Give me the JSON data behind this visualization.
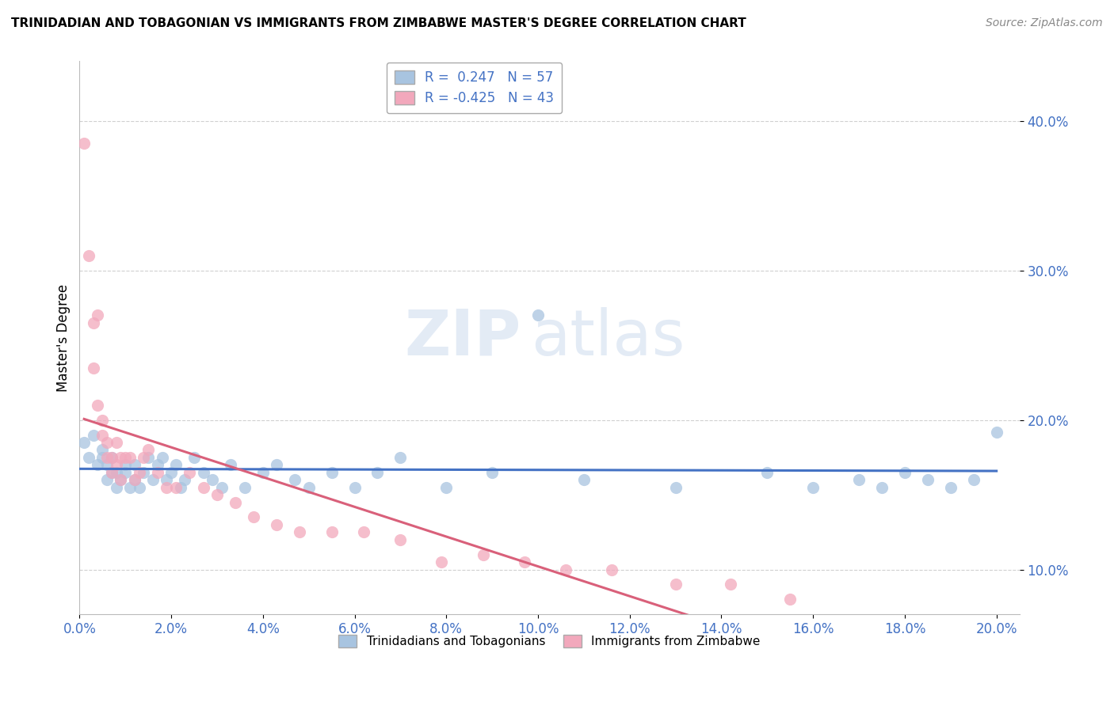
{
  "title": "TRINIDADIAN AND TOBAGONIAN VS IMMIGRANTS FROM ZIMBABWE MASTER'S DEGREE CORRELATION CHART",
  "source": "Source: ZipAtlas.com",
  "ylabel": "Master's Degree",
  "xlim": [
    0.0,
    0.205
  ],
  "ylim": [
    0.07,
    0.44
  ],
  "yticks": [
    0.1,
    0.2,
    0.3,
    0.4
  ],
  "ytick_labels": [
    "10.0%",
    "20.0%",
    "30.0%",
    "40.0%"
  ],
  "xticks": [
    0.0,
    0.02,
    0.04,
    0.06,
    0.08,
    0.1,
    0.12,
    0.14,
    0.16,
    0.18,
    0.2
  ],
  "xtick_labels": [
    "0.0%",
    "2.0%",
    "4.0%",
    "6.0%",
    "8.0%",
    "10.0%",
    "12.0%",
    "14.0%",
    "16.0%",
    "18.0%",
    "20.0%"
  ],
  "blue_R": 0.247,
  "blue_N": 57,
  "pink_R": -0.425,
  "pink_N": 43,
  "blue_color": "#a8c4e0",
  "pink_color": "#f2a8bc",
  "blue_line_color": "#4472c4",
  "pink_line_color": "#d9607a",
  "legend_label_blue": "R =  0.247   N = 57",
  "legend_label_pink": "R = -0.425   N = 43",
  "bottom_legend_blue": "Trinidadians and Tobagonians",
  "bottom_legend_pink": "Immigrants from Zimbabwe",
  "blue_scatter_x": [
    0.001,
    0.002,
    0.003,
    0.004,
    0.005,
    0.005,
    0.006,
    0.006,
    0.007,
    0.007,
    0.008,
    0.008,
    0.009,
    0.01,
    0.01,
    0.011,
    0.012,
    0.012,
    0.013,
    0.014,
    0.015,
    0.016,
    0.017,
    0.018,
    0.019,
    0.02,
    0.021,
    0.022,
    0.023,
    0.025,
    0.027,
    0.029,
    0.031,
    0.033,
    0.036,
    0.04,
    0.043,
    0.047,
    0.05,
    0.055,
    0.06,
    0.065,
    0.07,
    0.08,
    0.09,
    0.1,
    0.11,
    0.13,
    0.15,
    0.16,
    0.17,
    0.175,
    0.18,
    0.185,
    0.19,
    0.195,
    0.2
  ],
  "blue_scatter_y": [
    0.185,
    0.175,
    0.19,
    0.17,
    0.175,
    0.18,
    0.16,
    0.17,
    0.165,
    0.175,
    0.155,
    0.165,
    0.16,
    0.17,
    0.165,
    0.155,
    0.16,
    0.17,
    0.155,
    0.165,
    0.175,
    0.16,
    0.17,
    0.175,
    0.16,
    0.165,
    0.17,
    0.155,
    0.16,
    0.175,
    0.165,
    0.16,
    0.155,
    0.17,
    0.155,
    0.165,
    0.17,
    0.16,
    0.155,
    0.165,
    0.155,
    0.165,
    0.175,
    0.155,
    0.165,
    0.27,
    0.16,
    0.155,
    0.165,
    0.155,
    0.16,
    0.155,
    0.165,
    0.16,
    0.155,
    0.16,
    0.192
  ],
  "pink_scatter_x": [
    0.001,
    0.002,
    0.003,
    0.003,
    0.004,
    0.004,
    0.005,
    0.005,
    0.006,
    0.006,
    0.007,
    0.007,
    0.008,
    0.008,
    0.009,
    0.009,
    0.01,
    0.011,
    0.012,
    0.013,
    0.014,
    0.015,
    0.017,
    0.019,
    0.021,
    0.024,
    0.027,
    0.03,
    0.034,
    0.038,
    0.043,
    0.048,
    0.055,
    0.062,
    0.07,
    0.079,
    0.088,
    0.097,
    0.106,
    0.116,
    0.13,
    0.142,
    0.155
  ],
  "pink_scatter_y": [
    0.385,
    0.31,
    0.265,
    0.235,
    0.27,
    0.21,
    0.19,
    0.2,
    0.175,
    0.185,
    0.175,
    0.165,
    0.185,
    0.17,
    0.175,
    0.16,
    0.175,
    0.175,
    0.16,
    0.165,
    0.175,
    0.18,
    0.165,
    0.155,
    0.155,
    0.165,
    0.155,
    0.15,
    0.145,
    0.135,
    0.13,
    0.125,
    0.125,
    0.125,
    0.12,
    0.105,
    0.11,
    0.105,
    0.1,
    0.1,
    0.09,
    0.09,
    0.08
  ],
  "watermark_zip": "ZIP",
  "watermark_atlas": "atlas",
  "background_color": "#ffffff",
  "grid_color": "#d0d0d0"
}
